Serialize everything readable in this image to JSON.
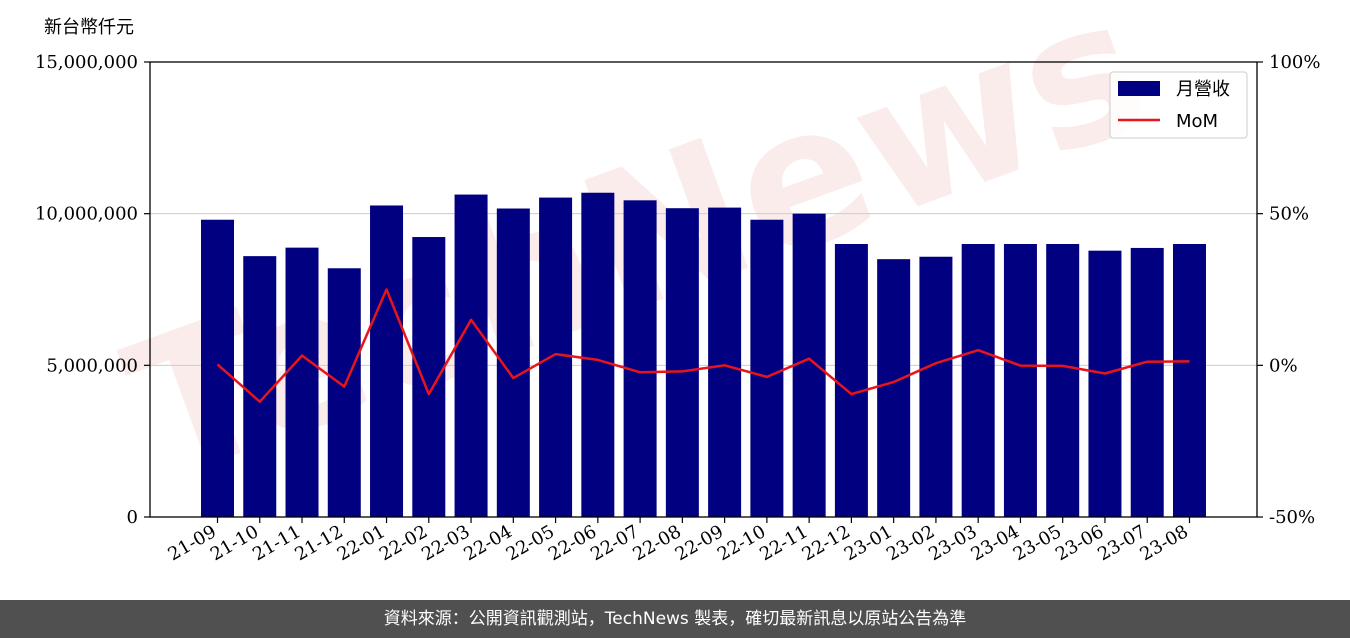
{
  "colors": {
    "bar": "#000080",
    "line": "#e8141c",
    "grid": "#cccccc",
    "watermark": "#f7dcdc"
  },
  "watermark": "TechNews",
  "footer": {
    "source": "資料來源：公開資訊觀測站，TechNews 製表，確切最新訊息以原站公告為準"
  },
  "chart_data": {
    "type": "bar",
    "ylabel": "新台幣仟元",
    "ylim": [
      0,
      15000000
    ],
    "y_ticks": [
      "0",
      "5,000,000",
      "10,000,000",
      "15,000,000"
    ],
    "y2lim": [
      -50,
      100
    ],
    "y2_ticks": [
      "-50%",
      "0%",
      "50%",
      "100%"
    ],
    "grid": "horizontal",
    "legend_position": "top-right",
    "categories": [
      "21-09",
      "21-10",
      "21-11",
      "21-12",
      "22-01",
      "22-02",
      "22-03",
      "22-04",
      "22-05",
      "22-06",
      "22-07",
      "22-08",
      "22-09",
      "22-10",
      "22-11",
      "22-12",
      "23-01",
      "23-02",
      "23-03",
      "23-04",
      "23-05",
      "23-06",
      "23-07",
      "23-08"
    ],
    "series": [
      {
        "name": "月營收",
        "type": "bar",
        "axis": "left",
        "values": [
          9800000,
          8600000,
          8880000,
          8200000,
          10270000,
          9230000,
          10630000,
          10170000,
          10530000,
          10690000,
          10440000,
          10180000,
          10200000,
          9800000,
          10000000,
          9000000,
          8500000,
          8580000,
          9000000,
          9000000,
          9000000,
          8780000,
          8870000,
          9000000
        ]
      },
      {
        "name": "MoM",
        "type": "line",
        "axis": "right",
        "values": [
          0.3,
          -12,
          3.2,
          -7,
          25,
          -9.5,
          15,
          -4.2,
          3.7,
          1.8,
          -2.3,
          -2,
          0,
          -3.8,
          2.2,
          -9.5,
          -5.5,
          0.7,
          5,
          -0.1,
          -0.2,
          -2.7,
          1.2,
          1.3
        ]
      }
    ]
  }
}
